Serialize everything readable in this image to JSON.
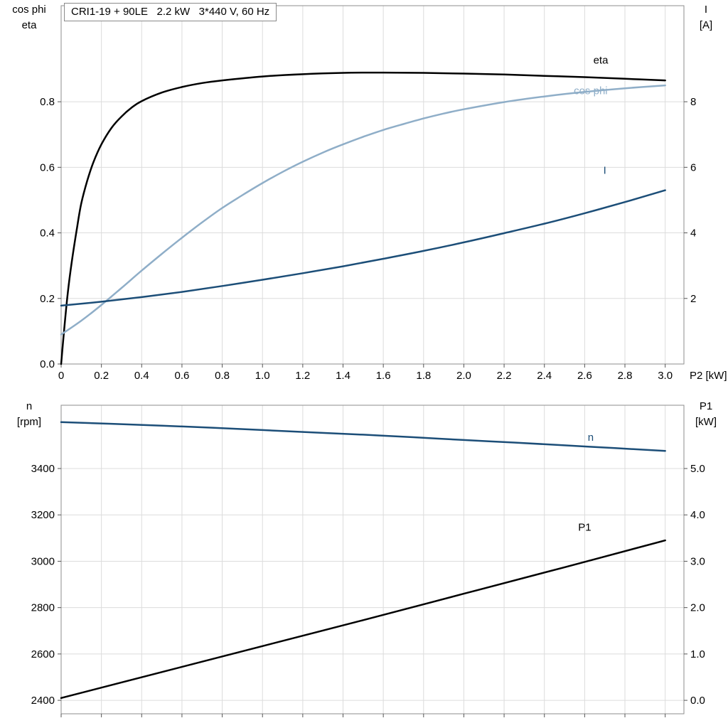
{
  "colors": {
    "black": "#000000",
    "light_blue": "#8FAEC8",
    "dark_blue": "#1C4E78",
    "grid": "#DCDCDC",
    "frame": "#8E8E8E",
    "tick": "#555555",
    "text": "#000000",
    "background": "#FFFFFF"
  },
  "title_box": {
    "text": "CRI1-19 + 90LE   2.2 kW   3*440 V, 60 Hz"
  },
  "chart_data": [
    {
      "type": "line",
      "title": "CRI1-19 + 90LE  2.2 kW  3*440 V, 60 Hz",
      "x": {
        "min": 0,
        "max": 3.093,
        "title": "P2 [kW]",
        "show_labels": true,
        "ticks": [
          {
            "v": 0,
            "label": "0"
          },
          {
            "v": 0.2,
            "label": "0.2"
          },
          {
            "v": 0.4,
            "label": "0.4"
          },
          {
            "v": 0.6,
            "label": "0.6"
          },
          {
            "v": 0.8,
            "label": "0.8"
          },
          {
            "v": 1.0,
            "label": "1.0"
          },
          {
            "v": 1.2,
            "label": "1.2"
          },
          {
            "v": 1.4,
            "label": "1.4"
          },
          {
            "v": 1.6,
            "label": "1.6"
          },
          {
            "v": 1.8,
            "label": "1.8"
          },
          {
            "v": 2.0,
            "label": "2.0"
          },
          {
            "v": 2.2,
            "label": "2.2"
          },
          {
            "v": 2.4,
            "label": "2.4"
          },
          {
            "v": 2.6,
            "label": "2.6"
          },
          {
            "v": 2.8,
            "label": "2.8"
          },
          {
            "v": 3.0,
            "label": "3.0"
          }
        ]
      },
      "left": {
        "min": 0,
        "max": 1.093,
        "title_lines": [
          "cos phi",
          "eta"
        ],
        "ticks": [
          {
            "v": 0,
            "label": "0.0"
          },
          {
            "v": 0.2,
            "label": "0.2"
          },
          {
            "v": 0.4,
            "label": "0.4"
          },
          {
            "v": 0.6,
            "label": "0.6"
          },
          {
            "v": 0.8,
            "label": "0.8"
          }
        ]
      },
      "right": {
        "min": 0,
        "max": 10.93,
        "title_lines": [
          "I",
          "[A]"
        ],
        "ticks": [
          {
            "v": 2,
            "label": "2"
          },
          {
            "v": 4,
            "label": "4"
          },
          {
            "v": 6,
            "label": "6"
          },
          {
            "v": 8,
            "label": "8"
          }
        ]
      },
      "series": [
        {
          "name": "eta",
          "axis": "left",
          "color": "#000000",
          "label": {
            "text": "eta",
            "x": 2.68,
            "y": 0.916
          },
          "points": [
            [
              0,
              0
            ],
            [
              0.01,
              0.07
            ],
            [
              0.03,
              0.2
            ],
            [
              0.05,
              0.3
            ],
            [
              0.08,
              0.42
            ],
            [
              0.1,
              0.49
            ],
            [
              0.13,
              0.56
            ],
            [
              0.16,
              0.615
            ],
            [
              0.2,
              0.67
            ],
            [
              0.25,
              0.72
            ],
            [
              0.3,
              0.755
            ],
            [
              0.35,
              0.782
            ],
            [
              0.4,
              0.802
            ],
            [
              0.5,
              0.828
            ],
            [
              0.6,
              0.845
            ],
            [
              0.7,
              0.857
            ],
            [
              0.8,
              0.865
            ],
            [
              1.0,
              0.877
            ],
            [
              1.2,
              0.884
            ],
            [
              1.4,
              0.888
            ],
            [
              1.6,
              0.889
            ],
            [
              1.8,
              0.888
            ],
            [
              2.0,
              0.886
            ],
            [
              2.2,
              0.883
            ],
            [
              2.4,
              0.879
            ],
            [
              2.6,
              0.875
            ],
            [
              2.8,
              0.87
            ],
            [
              3.0,
              0.865
            ]
          ]
        },
        {
          "name": "cos-phi",
          "axis": "left",
          "color": "#8FAEC8",
          "label": {
            "text": "cos phi",
            "x": 2.63,
            "y": 0.823
          },
          "points": [
            [
              0,
              0.09
            ],
            [
              0.1,
              0.132
            ],
            [
              0.2,
              0.18
            ],
            [
              0.3,
              0.232
            ],
            [
              0.4,
              0.285
            ],
            [
              0.5,
              0.336
            ],
            [
              0.6,
              0.385
            ],
            [
              0.7,
              0.432
            ],
            [
              0.8,
              0.476
            ],
            [
              0.9,
              0.515
            ],
            [
              1.0,
              0.552
            ],
            [
              1.1,
              0.586
            ],
            [
              1.2,
              0.617
            ],
            [
              1.3,
              0.645
            ],
            [
              1.4,
              0.67
            ],
            [
              1.5,
              0.693
            ],
            [
              1.6,
              0.714
            ],
            [
              1.7,
              0.732
            ],
            [
              1.8,
              0.749
            ],
            [
              1.9,
              0.764
            ],
            [
              2.0,
              0.777
            ],
            [
              2.2,
              0.799
            ],
            [
              2.4,
              0.816
            ],
            [
              2.6,
              0.83
            ],
            [
              2.8,
              0.841
            ],
            [
              3.0,
              0.85
            ]
          ]
        },
        {
          "name": "current",
          "axis": "right",
          "color": "#1C4E78",
          "label": {
            "text": "I",
            "x": 2.7,
            "y": 5.8
          },
          "points": [
            [
              0,
              1.78
            ],
            [
              0.2,
              1.9
            ],
            [
              0.4,
              2.04
            ],
            [
              0.6,
              2.2
            ],
            [
              0.8,
              2.38
            ],
            [
              1.0,
              2.57
            ],
            [
              1.2,
              2.77
            ],
            [
              1.4,
              2.98
            ],
            [
              1.6,
              3.21
            ],
            [
              1.8,
              3.45
            ],
            [
              2.0,
              3.71
            ],
            [
              2.2,
              3.99
            ],
            [
              2.4,
              4.28
            ],
            [
              2.6,
              4.6
            ],
            [
              2.8,
              4.94
            ],
            [
              3.0,
              5.3
            ]
          ]
        }
      ]
    },
    {
      "type": "line",
      "x": {
        "min": 0,
        "max": 3.093,
        "title": "",
        "show_labels": false,
        "ticks": [
          {
            "v": 0,
            "label": ""
          },
          {
            "v": 0.2,
            "label": ""
          },
          {
            "v": 0.4,
            "label": ""
          },
          {
            "v": 0.6,
            "label": ""
          },
          {
            "v": 0.8,
            "label": ""
          },
          {
            "v": 1.0,
            "label": ""
          },
          {
            "v": 1.2,
            "label": ""
          },
          {
            "v": 1.4,
            "label": ""
          },
          {
            "v": 1.6,
            "label": ""
          },
          {
            "v": 1.8,
            "label": ""
          },
          {
            "v": 2.0,
            "label": ""
          },
          {
            "v": 2.2,
            "label": ""
          },
          {
            "v": 2.4,
            "label": ""
          },
          {
            "v": 2.6,
            "label": ""
          },
          {
            "v": 2.8,
            "label": ""
          },
          {
            "v": 3.0,
            "label": ""
          }
        ]
      },
      "left": {
        "min": 2342,
        "max": 3673,
        "title_lines": [
          "n",
          "[rpm]"
        ],
        "ticks": [
          {
            "v": 2400,
            "label": "2400"
          },
          {
            "v": 2600,
            "label": "2600"
          },
          {
            "v": 2800,
            "label": "2800"
          },
          {
            "v": 3000,
            "label": "3000"
          },
          {
            "v": 3200,
            "label": "3200"
          },
          {
            "v": 3400,
            "label": "3400"
          }
        ]
      },
      "right": {
        "min": -0.29,
        "max": 6.365,
        "title_lines": [
          "P1",
          "[kW]"
        ],
        "ticks": [
          {
            "v": 0,
            "label": "0.0"
          },
          {
            "v": 1,
            "label": "1.0"
          },
          {
            "v": 2,
            "label": "2.0"
          },
          {
            "v": 3,
            "label": "3.0"
          },
          {
            "v": 4,
            "label": "4.0"
          },
          {
            "v": 5,
            "label": "5.0"
          }
        ]
      },
      "series": [
        {
          "name": "speed",
          "axis": "left",
          "color": "#1C4E78",
          "label": {
            "text": "n",
            "x": 2.63,
            "y": 3520
          },
          "points": [
            [
              0,
              3600
            ],
            [
              0.25,
              3593
            ],
            [
              0.5,
              3585
            ],
            [
              0.75,
              3576
            ],
            [
              1.0,
              3566
            ],
            [
              1.25,
              3556
            ],
            [
              1.5,
              3546
            ],
            [
              1.75,
              3535
            ],
            [
              2.0,
              3523
            ],
            [
              2.25,
              3512
            ],
            [
              2.5,
              3500
            ],
            [
              2.75,
              3488
            ],
            [
              3.0,
              3476
            ]
          ]
        },
        {
          "name": "p1",
          "axis": "right",
          "color": "#000000",
          "label": {
            "text": "P1",
            "x": 2.6,
            "y": 3.66
          },
          "points": [
            [
              0,
              0.05
            ],
            [
              0.5,
              0.61
            ],
            [
              1.0,
              1.17
            ],
            [
              1.5,
              1.73
            ],
            [
              2.0,
              2.3
            ],
            [
              2.5,
              2.87
            ],
            [
              3.0,
              3.45
            ]
          ]
        }
      ]
    }
  ]
}
